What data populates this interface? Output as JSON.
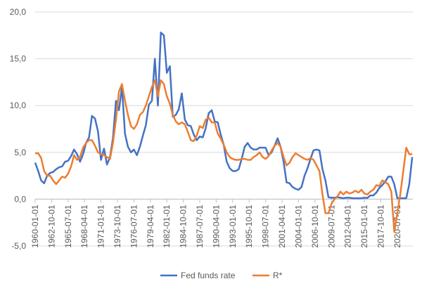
{
  "chart_data": {
    "type": "line",
    "x": [
      1960,
      1960.5,
      1961,
      1961.5,
      1962,
      1962.5,
      1963,
      1963.5,
      1964,
      1964.5,
      1965,
      1965.5,
      1966,
      1966.5,
      1967,
      1967.5,
      1968,
      1968.5,
      1969,
      1969.5,
      1970,
      1970.5,
      1971,
      1971.5,
      1972,
      1972.5,
      1973,
      1973.5,
      1974,
      1974.5,
      1975,
      1975.5,
      1976,
      1976.5,
      1977,
      1977.5,
      1978,
      1978.5,
      1979,
      1979.5,
      1980,
      1980.5,
      1981,
      1981.5,
      1982,
      1982.5,
      1983,
      1983.5,
      1984,
      1984.5,
      1985,
      1985.5,
      1986,
      1986.5,
      1987,
      1987.5,
      1988,
      1988.5,
      1989,
      1989.5,
      1990,
      1990.5,
      1991,
      1991.5,
      1992,
      1992.5,
      1993,
      1993.5,
      1994,
      1994.5,
      1995,
      1995.5,
      1996,
      1996.5,
      1997,
      1997.5,
      1998,
      1998.5,
      1999,
      1999.5,
      2000,
      2000.5,
      2001,
      2001.5,
      2002,
      2002.5,
      2003,
      2003.5,
      2004,
      2004.5,
      2005,
      2005.5,
      2006,
      2006.5,
      2007,
      2007.5,
      2008,
      2008.5,
      2009,
      2009.5,
      2010,
      2010.5,
      2011,
      2011.5,
      2012,
      2012.5,
      2013,
      2013.5,
      2014,
      2014.5,
      2015,
      2015.5,
      2016,
      2016.5,
      2017,
      2017.5,
      2018,
      2018.5,
      2019,
      2019.5,
      2020,
      2020.5,
      2021,
      2021.5,
      2022,
      2022.5,
      2023
    ],
    "series": [
      {
        "name": "Fed funds rate",
        "color": "#4472c4",
        "values": [
          3.9,
          3.0,
          2.0,
          1.7,
          2.5,
          2.8,
          2.9,
          3.2,
          3.4,
          3.5,
          4.0,
          4.1,
          4.6,
          5.3,
          4.8,
          4.0,
          4.8,
          6.0,
          6.6,
          8.9,
          8.6,
          7.2,
          4.2,
          5.4,
          3.7,
          4.5,
          6.5,
          10.5,
          9.5,
          12.0,
          7.0,
          5.6,
          5.0,
          5.3,
          4.7,
          5.6,
          6.8,
          7.9,
          10.1,
          10.5,
          15.0,
          10.0,
          17.8,
          17.5,
          13.5,
          14.2,
          8.8,
          9.0,
          9.6,
          11.3,
          8.5,
          7.9,
          7.8,
          6.9,
          6.3,
          6.7,
          6.6,
          7.6,
          9.2,
          9.5,
          8.3,
          8.2,
          6.9,
          5.8,
          4.0,
          3.3,
          3.0,
          3.0,
          3.2,
          4.3,
          5.6,
          6.0,
          5.5,
          5.3,
          5.3,
          5.5,
          5.5,
          5.5,
          4.7,
          5.0,
          5.7,
          6.5,
          5.6,
          4.0,
          1.8,
          1.7,
          1.3,
          1.1,
          1.0,
          1.3,
          2.5,
          3.3,
          4.3,
          5.2,
          5.3,
          5.2,
          3.2,
          2.0,
          0.2,
          0.15,
          0.15,
          0.2,
          0.15,
          0.1,
          0.15,
          0.15,
          0.1,
          0.1,
          0.1,
          0.1,
          0.15,
          0.13,
          0.4,
          0.4,
          0.7,
          1.2,
          1.5,
          1.9,
          2.4,
          2.4,
          1.6,
          0.1,
          0.1,
          0.1,
          0.1,
          1.6,
          4.5
        ]
      },
      {
        "name": "R*",
        "color": "#ed7d31",
        "values": [
          4.9,
          4.9,
          4.4,
          3.0,
          2.5,
          2.5,
          2.0,
          1.6,
          2.0,
          2.4,
          2.3,
          2.7,
          3.5,
          4.7,
          4.2,
          4.5,
          5.5,
          6.0,
          6.3,
          6.3,
          5.7,
          5.0,
          4.8,
          4.7,
          4.5,
          4.3,
          6.0,
          8.5,
          11.5,
          12.3,
          10.5,
          9.0,
          7.8,
          7.5,
          8.0,
          9.0,
          9.3,
          10.0,
          11.0,
          12.0,
          12.7,
          11.0,
          12.7,
          12.3,
          11.0,
          10.2,
          9.0,
          8.3,
          8.0,
          8.2,
          8.0,
          7.2,
          6.3,
          6.2,
          6.8,
          7.8,
          7.6,
          8.5,
          8.7,
          8.2,
          8.2,
          7.0,
          6.5,
          5.8,
          5.0,
          4.5,
          4.3,
          4.2,
          4.2,
          4.3,
          4.3,
          4.2,
          4.2,
          4.5,
          4.7,
          5.0,
          4.5,
          4.3,
          4.6,
          5.2,
          5.7,
          6.0,
          5.6,
          4.5,
          3.6,
          3.9,
          4.5,
          4.9,
          4.7,
          4.5,
          4.3,
          4.2,
          4.4,
          4.2,
          3.6,
          3.0,
          0.5,
          -1.5,
          -1.5,
          -0.5,
          0.0,
          0.3,
          0.8,
          0.5,
          0.8,
          0.6,
          0.7,
          0.9,
          0.7,
          1.0,
          0.6,
          0.5,
          0.8,
          1.0,
          1.5,
          1.4,
          2.0,
          1.8,
          1.6,
          0.8,
          -3.5,
          -1.5,
          0.5,
          3.0,
          5.5,
          4.8,
          4.8
        ]
      }
    ],
    "xlim": [
      1960,
      2023.1
    ],
    "xticks": [
      {
        "value": 1960,
        "label": "1960-01-01"
      },
      {
        "value": 1962.75,
        "label": "1962-10-01"
      },
      {
        "value": 1965.5,
        "label": "1965-07-01"
      },
      {
        "value": 1968.25,
        "label": "1968-04-01"
      },
      {
        "value": 1971,
        "label": "1971-01-01"
      },
      {
        "value": 1973.75,
        "label": "1973-10-01"
      },
      {
        "value": 1976.5,
        "label": "1976-07-01"
      },
      {
        "value": 1979.25,
        "label": "1979-04-01"
      },
      {
        "value": 1982,
        "label": "1982-01-01"
      },
      {
        "value": 1984.75,
        "label": "1984-10-01"
      },
      {
        "value": 1987.5,
        "label": "1987-07-01"
      },
      {
        "value": 1990.25,
        "label": "1990-04-01"
      },
      {
        "value": 1993,
        "label": "1993-01-01"
      },
      {
        "value": 1995.75,
        "label": "1995-10-01"
      },
      {
        "value": 1998.5,
        "label": "1998-07-01"
      },
      {
        "value": 2001.25,
        "label": "2001-04-01"
      },
      {
        "value": 2004,
        "label": "2004-01-01"
      },
      {
        "value": 2006.75,
        "label": "2006-10-01"
      },
      {
        "value": 2009.5,
        "label": "2009-07-01"
      },
      {
        "value": 2012.25,
        "label": "2012-04-01"
      },
      {
        "value": 2015,
        "label": "2015-01-01"
      },
      {
        "value": 2017.75,
        "label": "2017-10-01"
      },
      {
        "value": 2020.5,
        "label": "2020-07-01"
      }
    ],
    "ylim": [
      -5,
      20
    ],
    "yticks": [
      {
        "value": -5,
        "label": "-5,0"
      },
      {
        "value": 0,
        "label": "0,0"
      },
      {
        "value": 5,
        "label": "5,0"
      },
      {
        "value": 10,
        "label": "10,0"
      },
      {
        "value": 15,
        "label": "15,0"
      },
      {
        "value": 20,
        "label": "20,0"
      }
    ],
    "grid": true,
    "legend": "bottom"
  }
}
